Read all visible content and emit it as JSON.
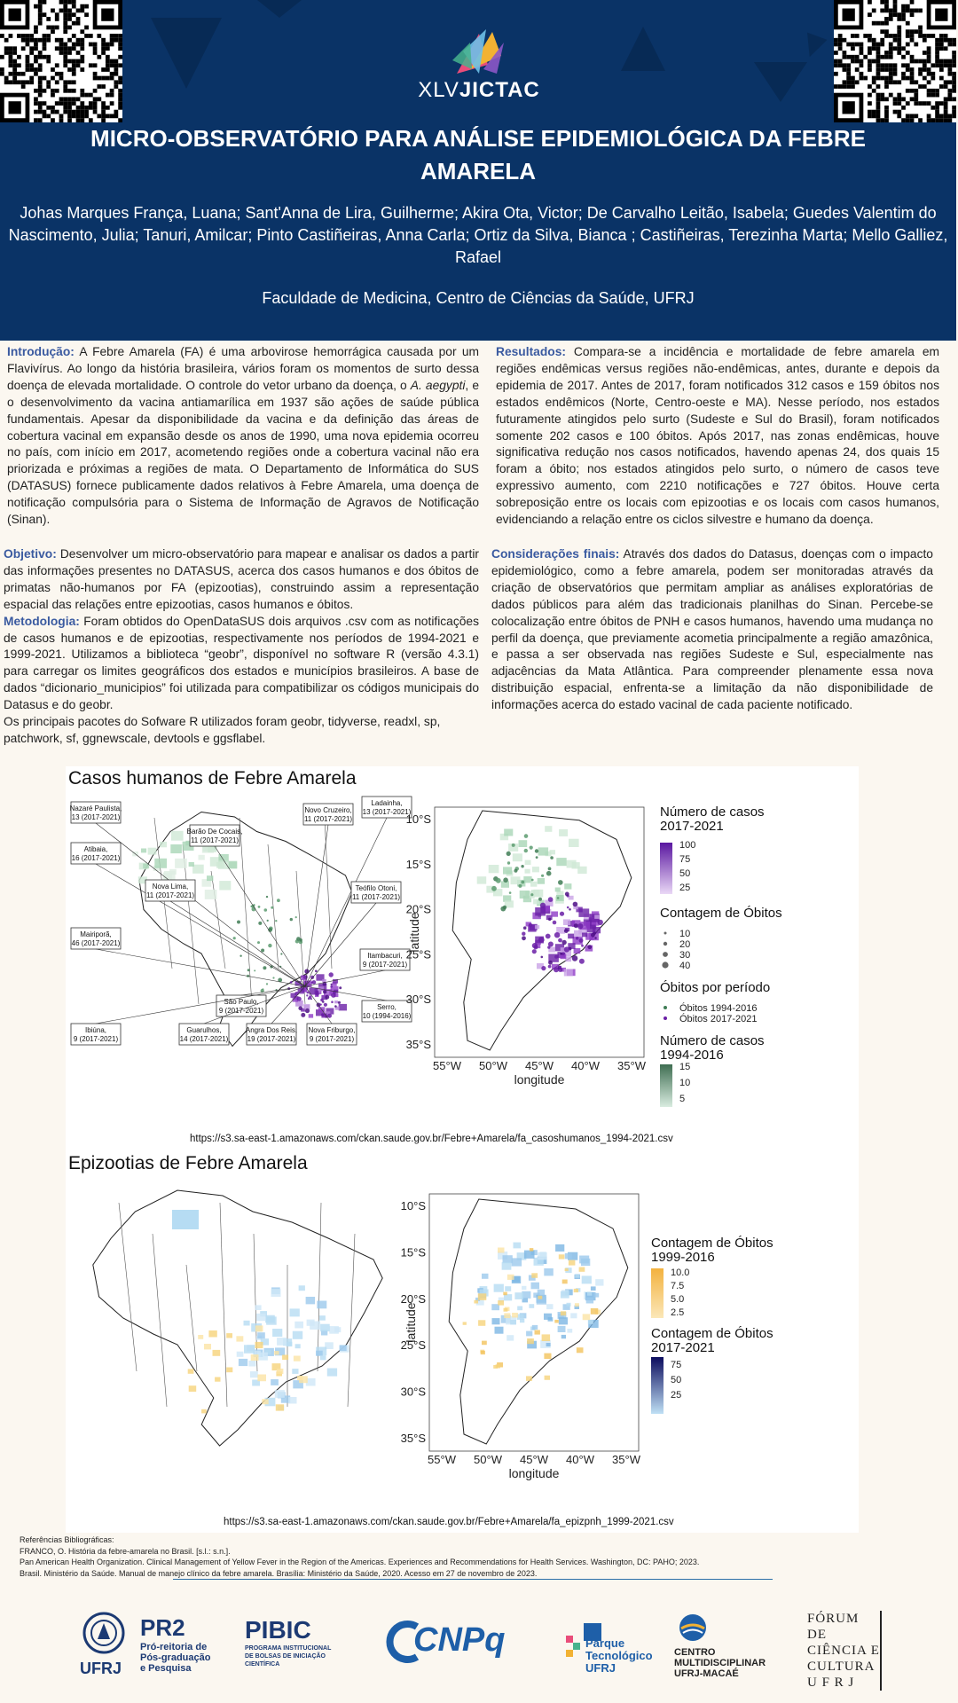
{
  "header": {
    "event_prefix": "XLV",
    "event_name": "JICTAC",
    "title": "MICRO-OBSERVATÓRIO PARA ANÁLISE EPIDEMIOLÓGICA DA FEBRE AMARELA",
    "authors": "Johas Marques França, Luana; Sant'Anna de Lira, Guilherme; Akira Ota, Victor; De Carvalho Leitão, Isabela; Guedes Valentim do Nascimento, Julia; Tanuri, Amilcar; Pinto Castiñeiras, Anna Carla; Ortiz da Silva, Bianca ; Castiñeiras, Terezinha Marta; Mello Galliez, Rafael",
    "affiliation": "Faculdade de Medicina, Centro de Ciências da Saúde, UFRJ"
  },
  "sections": {
    "intro_h": "Introdução:",
    "intro_1": " A Febre Amarela (FA) é uma arbovirose hemorrágica causada por um Flavivírus. Ao longo da história brasileira, vários foram os momentos de surto dessa doença de elevada mortalidade. O controle do vetor urbano da doença, o ",
    "intro_em": "A. aegypti",
    "intro_2": ", e o desenvolvimento da vacina antiamarílica em 1937 são ações de saúde pública fundamentais. Apesar da disponibilidade da vacina e da definição das áreas de cobertura vacinal em expansão desde os anos de 1990, uma nova epidemia ocorreu no país, com início em 2017, acometendo regiões onde a cobertura vacinal não era priorizada e próximas a regiões de mata. O Departamento de Informática do SUS (DATASUS) fornece publicamente dados relativos à Febre Amarela, uma doença de notificação compulsória para o Sistema de Informação de Agravos de Notificação (Sinan).",
    "obj_h": "Objetivo:",
    "obj": " Desenvolver um micro-observatório para mapear e analisar os dados a partir das informações presentes no DATASUS, acerca dos casos humanos e dos óbitos de primatas não-humanos por FA (epizootias), construindo assim a representação espacial das relações entre epizootias, casos humanos e óbitos.",
    "met_h": "Metodologia:",
    "met": " Foram obtidos do OpenDataSUS dois arquivos .csv com as notificações de casos humanos e de epizootias, respectivamente nos períodos de 1994-2021 e 1999-2021. Utilizamos a biblioteca “geobr”, disponível no software R (versão 4.3.1) para carregar os limites geográficos dos estados e municípios brasileiros. A base de dados “dicionario_municipios” foi utilizada para compatibilizar os códigos municipais do Datasus e do geobr.",
    "met_2": "Os principais pacotes do Sofware R utilizados foram geobr, tidyverse, readxl, sp, patchwork, sf,  ggnewscale, devtools e ggsflabel.",
    "res_h": "Resultados:",
    "res": " Compara-se a incidência e mortalidade de febre amarela em regiões endêmicas versus regiões não-endêmicas, antes, durante e depois da epidemia de 2017. Antes de 2017, foram notificados 312 casos e 159 óbitos nos estados endêmicos (Norte, Centro-oeste e MA). Nesse período, nos estados futuramente atingidos pelo surto (Sudeste e Sul do Brasil), foram notificados somente 202 casos e 100 óbitos. Após 2017, nas zonas endêmicas, houve significativa redução nos casos notificados, havendo apenas 24, dos quais 15 foram a óbito; nos estados atingidos pelo surto, o número de casos teve expressivo aumento, com 2210 notificações e 727 óbitos. Houve certa sobreposição entre os locais com epizootias e os locais com casos humanos, evidenciando a relação entre os ciclos silvestre e humano da doença.",
    "cons_h": "Considerações finais:",
    "cons": " Através dos dados do Datasus, doenças com o impacto epidemiológico, como a febre amarela, podem ser monitoradas através  da criação de observatórios que permitam ampliar as análises exploratórias de dados públicos para além das tradicionais planilhas do Sinan. Percebe-se colocalização entre óbitos de PNH e casos humanos, havendo uma mudança no perfil da doença, que previamente acometia principalmente a região amazônica, e passa a ser observada nas regiões Sudeste e Sul, especialmente nas adjacências da Mata Atlântica. Para compreender plenamente essa nova distribuição espacial, enfrenta-se a limitação da não disponibilidade de informações acerca do estado vacinal de cada paciente notificado."
  },
  "figure1": {
    "title": "Casos humanos de Febre Amarela",
    "callouts": [
      "Nazaré Paulista,|13 (2017-2021)",
      "Atibaia,|16 (2017-2021)",
      "Barão De Cocais,|11 (2017-2021)",
      "Novo Cruzeiro,|11 (2017-2021)",
      "Ladainha,|13 (2017-2021)",
      "Nova Lima,|11 (2017-2021)",
      "Teófilo Otoni,|11 (2017-2021)",
      "Mairiporã,|46 (2017-2021)",
      "Itambacuri,|9 (2017-2021)",
      "São Paulo,|9 (2017-2021)",
      "Serro,|10 (1994-2016)",
      "Ibiúna,|9 (2017-2021)",
      "Guarulhos,|14 (2017-2021)",
      "Angra Dos Reis,|19 (2017-2021)",
      "Nova Friburgo,|9 (2017-2021)"
    ],
    "yticks": [
      "10°S",
      "15°S",
      "20°S",
      "25°S",
      "30°S",
      "35°S"
    ],
    "xticks": [
      "55°W",
      "50°W",
      "45°W",
      "40°W",
      "35°W"
    ],
    "ylabel": "latitude",
    "xlabel": "longitude",
    "legend1_title": "Número de casos|2017-2021",
    "legend1_values": [
      "100",
      "75",
      "50",
      "25"
    ],
    "legend2_title": "Contagem de Óbitos",
    "legend2_values": [
      "10",
      "20",
      "30",
      "40"
    ],
    "legend3_title": "Óbitos por período",
    "legend3_values": [
      "Óbitos 1994-2016",
      "Óbitos 2017-2021"
    ],
    "legend4_title": "Número de casos|1994-2016",
    "legend4_values": [
      "15",
      "10",
      "5"
    ],
    "url": "https://s3.sa-east-1.amazonaws.com/ckan.saude.gov.br/Febre+Amarela/fa_casoshumanos_1994-2021.csv"
  },
  "figure2": {
    "title": "Epizootias de Febre Amarela",
    "yticks": [
      "10°S",
      "15°S",
      "20°S",
      "25°S",
      "30°S",
      "35°S"
    ],
    "xticks": [
      "55°W",
      "50°W",
      "45°W",
      "40°W",
      "35°W"
    ],
    "ylabel": "latitude",
    "xlabel": "longitude",
    "legend1_title": "Contagem de Óbitos|1999-2016",
    "legend1_values": [
      "10.0",
      "7.5",
      "5.0",
      "2.5"
    ],
    "legend2_title": "Contagem de Óbitos|2017-2021",
    "legend2_values": [
      "75",
      "50",
      "25"
    ],
    "url": "https://s3.sa-east-1.amazonaws.com/ckan.saude.gov.br/Febre+Amarela/fa_epizpnh_1999-2021.csv"
  },
  "refs": [
    "Referências Bibliográficas:",
    "FRANCO, O. História da febre-amarela no Brasil. [s.l.: s.n.].",
    "Pan American Health Organization. Clinical Management of Yellow Fever in the Region of the Americas. Experiences and Recommendations for Health Services. Washington, DC: PAHO; 2023.",
    "Brasil. Ministério da Saúde. Manual de manejo clínico da febre amarela. Brasília: Ministério da Saúde, 2020. Acesso em 27 de novembro de 2023."
  ],
  "logos": {
    "ufrj": "UFRJ",
    "pr2_big": "PR2",
    "pr2_small": "Pró-reitoria de|Pós-graduação|e Pesquisa",
    "pibic_big": "PIBIC",
    "pibic_small": "PROGRAMA INSTITUCIONAL|DE BOLSAS DE INICIAÇÃO|CIENTÍFICA",
    "cnpq": "CNPq",
    "parque": "Parque|Tecnológico|UFRJ",
    "centro": "CENTRO|MULTIDISCIPLINAR|UFRJ-MACAÉ",
    "forum": "FÓRUM DE|CIÊNCIA E|CULTURA|U F R J"
  }
}
